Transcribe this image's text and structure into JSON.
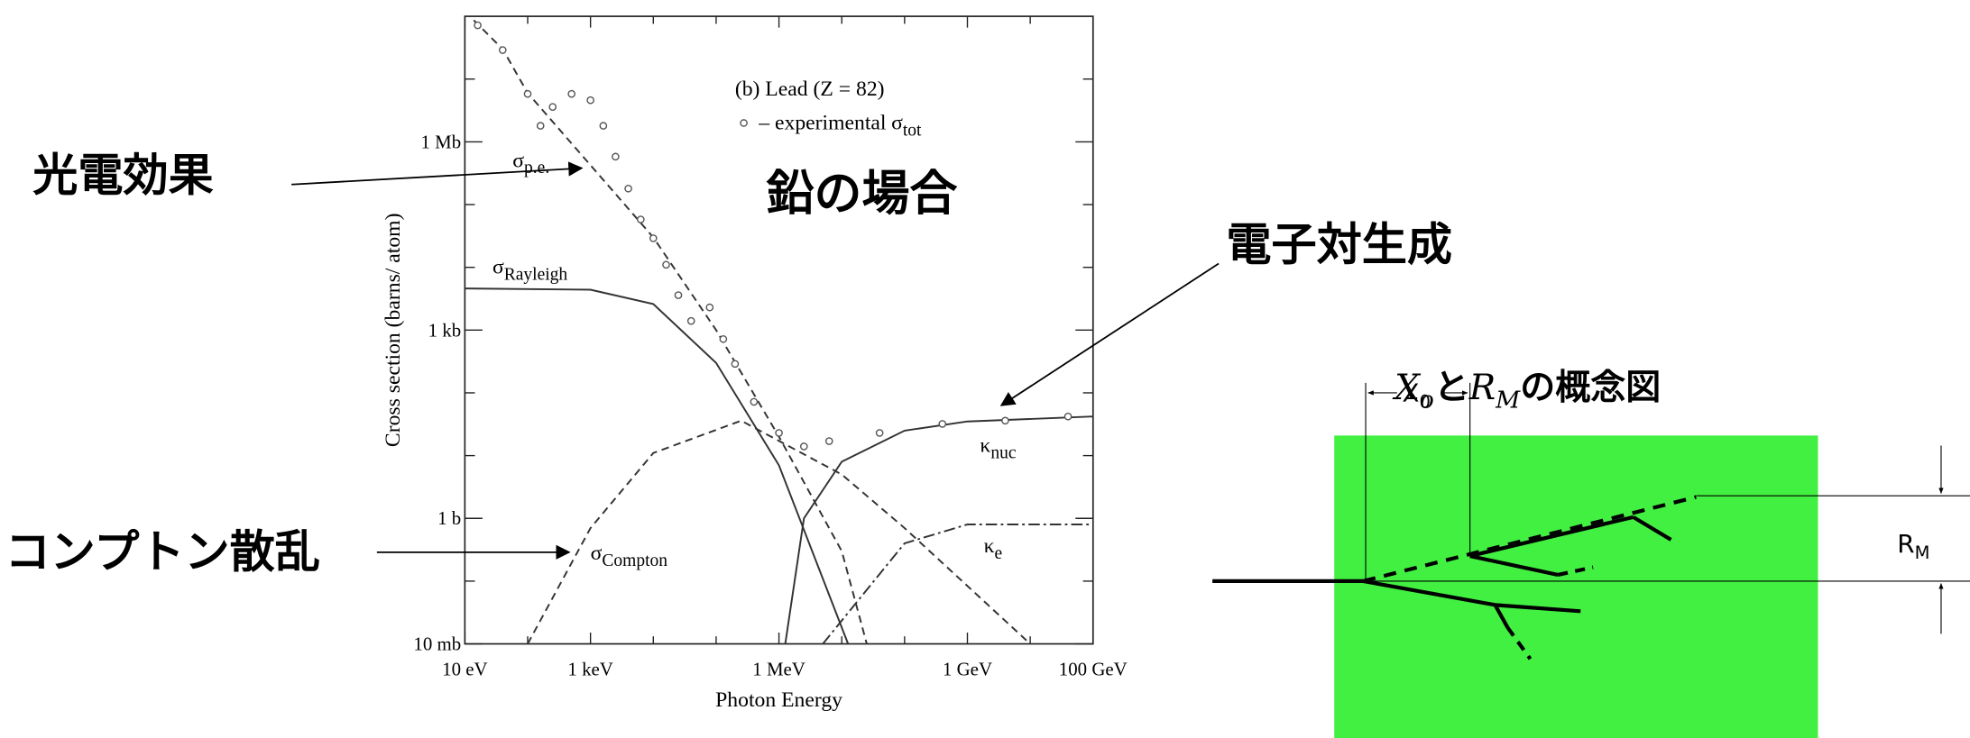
{
  "chart_data": {
    "type": "line",
    "title": "(b) Lead (Z = 82)",
    "x_label": "Photon Energy",
    "y_label": "Cross section  (barns/ atom)",
    "log_x": true,
    "log_y": true,
    "xlim": [
      10,
      100000000000.0
    ],
    "ylim": [
      0.01,
      100000000.0
    ],
    "xticks": [
      {
        "value": 10,
        "label": "10 eV"
      },
      {
        "value": 1000,
        "label": "1 keV"
      },
      {
        "value": 1000000,
        "label": "1 MeV"
      },
      {
        "value": 1000000000,
        "label": "1 GeV"
      },
      {
        "value": 100000000000,
        "label": "100 GeV"
      }
    ],
    "xticks_minor": [
      100,
      10000,
      100000,
      10000000,
      100000000,
      10000000000
    ],
    "yticks": [
      {
        "value": 0.01,
        "label": "10 mb"
      },
      {
        "value": 1,
        "label": "1 b"
      },
      {
        "value": 1000,
        "label": "1 kb"
      },
      {
        "value": 1000000,
        "label": "1 Mb"
      }
    ],
    "yticks_minor": [
      0.1,
      10,
      100,
      10000,
      100000,
      10000000
    ],
    "series": [
      {
        "label": {
          "symbol": "σ",
          "subscript": "p.e."
        },
        "style": "dashed",
        "color": "#333333",
        "x": [
          10,
          40,
          100,
          10000,
          100000,
          1000000,
          10000000,
          25000000
        ],
        "values": [
          120000000,
          30000000,
          6000000,
          30000,
          1000,
          20,
          0.3,
          0.01
        ]
      },
      {
        "label": {
          "symbol": "σ",
          "subscript": "Rayleigh"
        },
        "style": "solid",
        "color": "#333333",
        "x": [
          10,
          1000,
          10000,
          100000,
          1000000,
          12600000
        ],
        "values": [
          4600,
          4400,
          2600,
          300,
          7,
          0.01
        ]
      },
      {
        "label": {
          "symbol": "σ",
          "subscript": "Compton"
        },
        "style": "dashed",
        "color": "#333333",
        "x": [
          100,
          1000,
          10000,
          250000,
          10000000,
          100000000,
          10000000000
        ],
        "values": [
          0.01,
          0.7,
          11,
          36,
          5,
          0.7,
          0.01
        ]
      },
      {
        "label": {
          "symbol": "κ",
          "subscript": "nuc"
        },
        "style": "solid",
        "color": "#333333",
        "x": [
          1260000,
          2500000,
          10000000,
          100000000,
          1000000000,
          100000000000
        ],
        "values": [
          0.01,
          1,
          8,
          25,
          35,
          42
        ]
      },
      {
        "label": {
          "symbol": "κ",
          "subscript": "e"
        },
        "style": "dash-dot",
        "color": "#333333",
        "x": [
          5000000,
          100000000,
          1000000000,
          100000000000
        ],
        "values": [
          0.01,
          0.4,
          0.8,
          0.8
        ]
      },
      {
        "label": {
          "prefix": "– experimental",
          "symbol": "σ",
          "subscript": "tot"
        },
        "style": "markers",
        "color": "#555555",
        "x": [
          16,
          40,
          100,
          160,
          250,
          500,
          1000,
          1600,
          2500,
          4000,
          6300,
          10000,
          16000,
          25000,
          40000,
          79000,
          130000,
          200000,
          400000,
          1000000,
          2500000,
          6300000,
          40000000,
          400000000,
          4000000000,
          40000000000
        ],
        "values": [
          72000000,
          29000000,
          5800000,
          1800000,
          3600000,
          5800000,
          4600000,
          1800000,
          580000,
          180000,
          58000,
          29000,
          11000,
          3600,
          1400,
          2300,
          720,
          290,
          72,
          23,
          14,
          17,
          23,
          32,
          36,
          42
        ]
      }
    ]
  },
  "annotations": [
    {
      "text": "鉛の場合"
    },
    {
      "text": "光電効果"
    },
    {
      "text": "コンプトン散乱"
    },
    {
      "text": "電子対生成"
    }
  ],
  "diagram": {
    "title": [
      {
        "text": "X",
        "sub": "o",
        "italic": true
      },
      {
        "text": "と"
      },
      {
        "text": "R",
        "sub": "M",
        "italic": true
      },
      {
        "text": "の概念図"
      }
    ],
    "x0_label": {
      "text": "X",
      "sub": "0"
    },
    "rm_label": {
      "text": "R",
      "sub": "M"
    }
  }
}
